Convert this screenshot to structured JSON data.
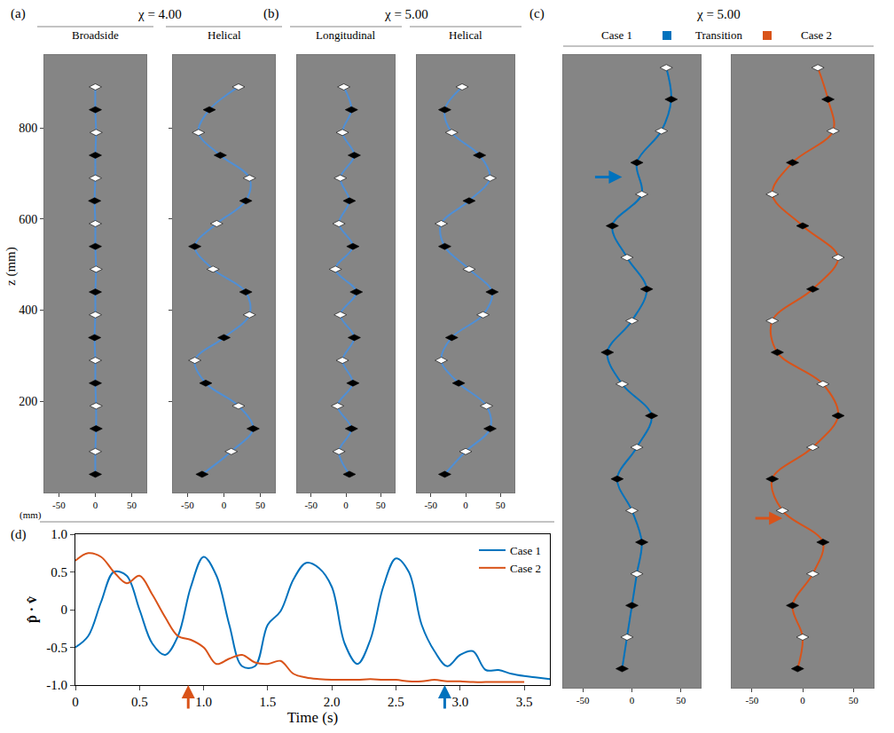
{
  "chart_data": [
    {
      "type": "trajectory",
      "panel": "(a)",
      "title": "χ = 4.00",
      "ylabel": "z (mm)",
      "xlabel": "(mm)",
      "xlim": [
        -70,
        70
      ],
      "xticks": [
        -50,
        0,
        50
      ],
      "ylim": [
        0,
        960
      ],
      "yticks": [
        200,
        400,
        600,
        800
      ],
      "subpanels": [
        {
          "title": "Broadside",
          "color": "#4f8fd6",
          "x": [
            0,
            0,
            1,
            1,
            0,
            0,
            -1,
            0,
            0,
            1,
            0,
            0,
            -1,
            0,
            0,
            1,
            0,
            0
          ],
          "z": [
            40,
            90,
            140,
            190,
            240,
            290,
            340,
            390,
            440,
            490,
            540,
            590,
            640,
            690,
            740,
            790,
            840,
            890
          ]
        },
        {
          "title": "Helical",
          "color": "#4f8fd6",
          "x": [
            -30,
            10,
            40,
            20,
            -25,
            -40,
            0,
            35,
            30,
            -15,
            -40,
            -10,
            30,
            35,
            -5,
            -35,
            -20,
            20
          ],
          "z": [
            40,
            90,
            140,
            190,
            240,
            290,
            340,
            390,
            440,
            490,
            540,
            590,
            640,
            690,
            740,
            790,
            840,
            890
          ]
        }
      ]
    },
    {
      "type": "trajectory",
      "panel": "(b)",
      "title": "χ = 5.00",
      "tick_labels": "x",
      "xlim": [
        -70,
        70
      ],
      "xticks": [
        -50,
        0,
        50
      ],
      "ylim": [
        0,
        960
      ],
      "subpanels": [
        {
          "title": "Longitudinal",
          "color": "#4f8fd6",
          "x": [
            5,
            -10,
            8,
            -12,
            10,
            -5,
            12,
            -8,
            15,
            -15,
            10,
            -10,
            5,
            -8,
            12,
            -5,
            8,
            -3
          ],
          "z": [
            40,
            90,
            140,
            190,
            240,
            290,
            340,
            390,
            440,
            490,
            540,
            590,
            640,
            690,
            740,
            790,
            840,
            890
          ]
        },
        {
          "title": "Helical",
          "color": "#4f8fd6",
          "x": [
            -30,
            0,
            35,
            30,
            -10,
            -35,
            -20,
            25,
            38,
            5,
            -30,
            -35,
            5,
            35,
            20,
            -20,
            -30,
            -5
          ],
          "z": [
            40,
            90,
            140,
            190,
            240,
            290,
            340,
            390,
            440,
            490,
            540,
            590,
            640,
            690,
            740,
            790,
            840,
            890
          ]
        }
      ]
    },
    {
      "type": "trajectory",
      "panel": "(c)",
      "title": "χ = 5.00",
      "tick_labels": "x",
      "header": [
        "Case 1",
        "Transition",
        "Case 2"
      ],
      "xlim": [
        -70,
        70
      ],
      "xticks": [
        -50,
        0,
        50
      ],
      "ylim": [
        0,
        1000
      ],
      "subpanels": [
        {
          "color": "#0072bd",
          "arrow": {
            "x": -10,
            "z": 807
          },
          "x": [
            -10,
            -5,
            0,
            5,
            10,
            0,
            -15,
            5,
            20,
            -10,
            -25,
            0,
            15,
            -5,
            -20,
            10,
            5,
            30,
            40,
            35
          ],
          "z": [
            30,
            80,
            130,
            180,
            230,
            280,
            330,
            380,
            430,
            480,
            530,
            580,
            630,
            680,
            730,
            780,
            830,
            880,
            930,
            980
          ]
        },
        {
          "color": "#d95319",
          "arrow": {
            "x": -20,
            "z": 268
          },
          "x": [
            -5,
            0,
            -10,
            10,
            20,
            -20,
            -30,
            10,
            35,
            20,
            -25,
            -30,
            10,
            35,
            0,
            -30,
            -10,
            30,
            25,
            15
          ],
          "z": [
            30,
            80,
            130,
            180,
            230,
            280,
            330,
            380,
            430,
            480,
            530,
            580,
            630,
            680,
            730,
            780,
            830,
            880,
            930,
            980
          ]
        }
      ]
    },
    {
      "type": "line",
      "panel": "(d)",
      "xlabel": "Time (s)",
      "ylabel": "p̂ · v̂",
      "legend": "upper right",
      "xlim": [
        0,
        3.7
      ],
      "xticks": [
        0,
        0.5,
        {
          "value": 1,
          "label": "1.0"
        },
        1.5,
        {
          "value": 2,
          "label": "2.0"
        },
        2.5,
        {
          "value": 3,
          "label": "3.0"
        },
        3.5
      ],
      "ylim": [
        -1,
        1
      ],
      "yticks": [
        {
          "value": -1,
          "label": "-1.0"
        },
        -0.5,
        0,
        0.5,
        {
          "value": 1,
          "label": "1.0"
        }
      ],
      "arrows": [
        {
          "x": 0.88,
          "color": "#d95319"
        },
        {
          "x": 2.88,
          "color": "#0072bd"
        }
      ],
      "series": [
        {
          "name": "Case 1",
          "color": "#0072bd",
          "x": [
            0,
            0.1,
            0.2,
            0.3,
            0.4,
            0.5,
            0.6,
            0.7,
            0.8,
            0.9,
            1.0,
            1.1,
            1.2,
            1.3,
            1.4,
            1.5,
            1.6,
            1.7,
            1.8,
            1.9,
            2.0,
            2.1,
            2.2,
            2.3,
            2.4,
            2.5,
            2.6,
            2.7,
            2.8,
            2.9,
            3.0,
            3.1,
            3.2,
            3.3,
            3.4,
            3.5,
            3.6,
            3.7
          ],
          "values": [
            -0.5,
            -0.35,
            0.1,
            0.5,
            0.45,
            0.0,
            -0.45,
            -0.6,
            -0.35,
            0.3,
            0.7,
            0.45,
            -0.2,
            -0.75,
            -0.75,
            -0.2,
            -0.02,
            0.4,
            0.62,
            0.55,
            0.3,
            -0.45,
            -0.72,
            -0.4,
            0.3,
            0.68,
            0.5,
            -0.2,
            -0.55,
            -0.75,
            -0.6,
            -0.55,
            -0.8,
            -0.8,
            -0.85,
            -0.88,
            -0.9,
            -0.92
          ]
        },
        {
          "name": "Case 2",
          "color": "#d95319",
          "x": [
            0,
            0.1,
            0.2,
            0.3,
            0.4,
            0.5,
            0.6,
            0.7,
            0.8,
            0.9,
            1.0,
            1.1,
            1.2,
            1.3,
            1.4,
            1.5,
            1.6,
            1.7,
            1.8,
            1.9,
            2.0,
            2.1,
            2.2,
            2.3,
            2.4,
            2.5,
            2.6,
            2.7,
            2.8,
            2.9,
            3.0,
            3.1,
            3.2,
            3.3,
            3.4,
            3.5
          ],
          "values": [
            0.65,
            0.75,
            0.7,
            0.5,
            0.35,
            0.45,
            0.2,
            -0.1,
            -0.35,
            -0.4,
            -0.5,
            -0.72,
            -0.65,
            -0.6,
            -0.7,
            -0.72,
            -0.68,
            -0.85,
            -0.9,
            -0.92,
            -0.93,
            -0.93,
            -0.93,
            -0.92,
            -0.93,
            -0.93,
            -0.95,
            -0.95,
            -0.93,
            -0.95,
            -0.95,
            -0.96,
            -0.96,
            -0.96,
            -0.96,
            -0.96
          ]
        }
      ]
    }
  ]
}
